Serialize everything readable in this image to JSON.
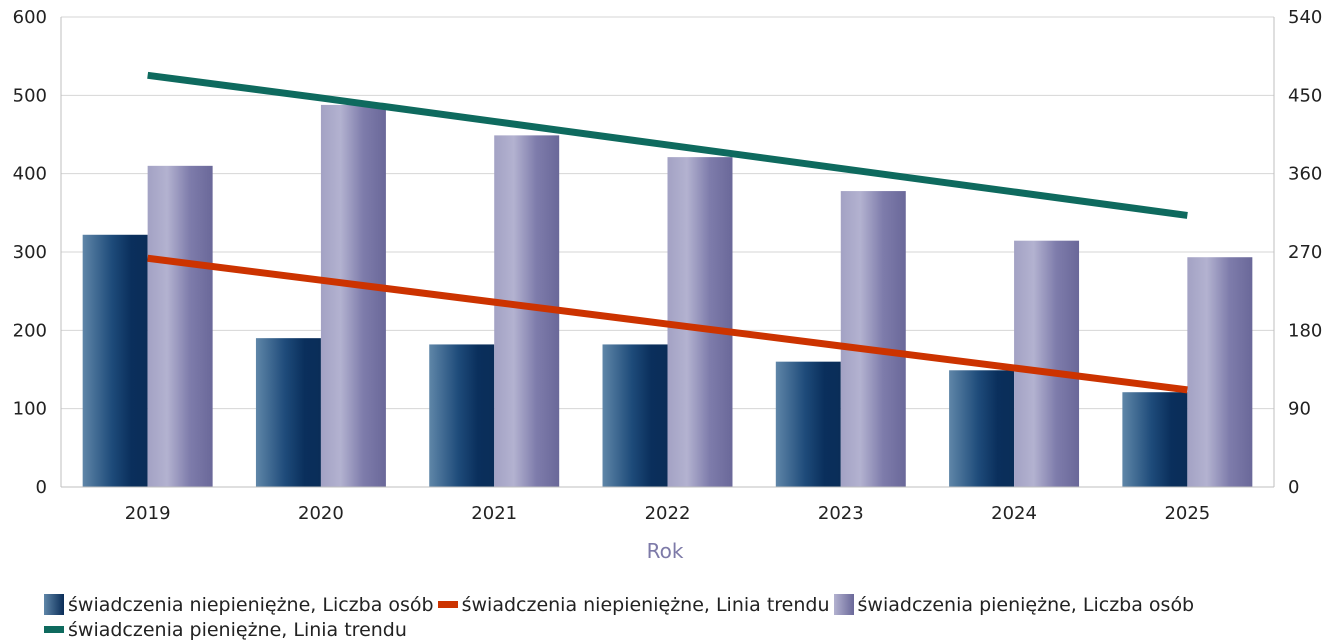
{
  "chart_data": {
    "type": "bar",
    "categories": [
      "2019",
      "2020",
      "2021",
      "2022",
      "2023",
      "2024",
      "2025"
    ],
    "xlabel": "Rok",
    "ylim_left": [
      0,
      600
    ],
    "yticks_left": [
      "0",
      "100",
      "200",
      "300",
      "400",
      "500",
      "600"
    ],
    "ylim_right": [
      0,
      540
    ],
    "yticks_right": [
      "0",
      "90",
      "180",
      "270",
      "360",
      "450",
      "540"
    ],
    "grid": true,
    "legend_position": "bottom",
    "series": [
      {
        "name": "świadczenia niepieniężne, Liczba osób",
        "kind": "bar",
        "axis": "left",
        "color": "#0e3a66",
        "values": [
          322,
          190,
          182,
          182,
          160,
          149,
          121
        ]
      },
      {
        "name": "świadczenia niepieniężne, Linia trendu",
        "kind": "line",
        "axis": "left",
        "color": "#cc3300",
        "values": [
          292,
          264,
          236,
          208,
          180,
          152,
          124
        ]
      },
      {
        "name": "świadczenia pieniężne, Liczba osób",
        "kind": "bar",
        "axis": "right",
        "color": "#7b79a6",
        "values": [
          369,
          439,
          404,
          379,
          340,
          283,
          264
        ]
      },
      {
        "name": "świadczenia pieniężne, Linia trendu",
        "kind": "line",
        "axis": "right",
        "color": "#0e6a5e",
        "values": [
          473,
          447,
          420,
          393,
          366,
          339,
          312
        ]
      }
    ]
  }
}
